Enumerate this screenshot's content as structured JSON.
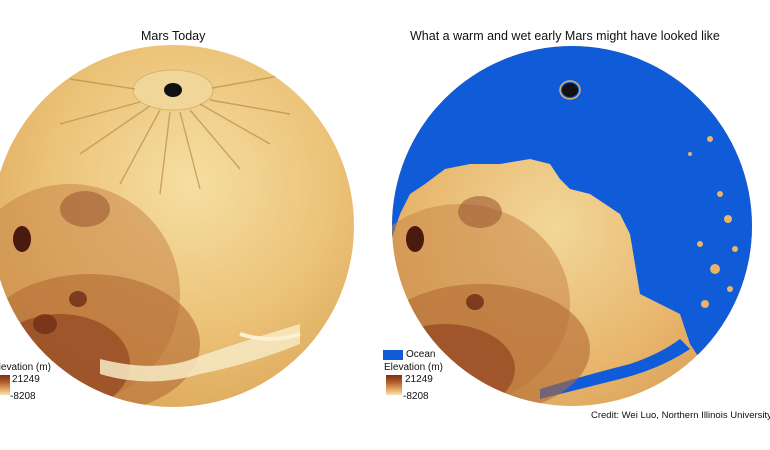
{
  "panels": {
    "left": {
      "title": "Mars Today"
    },
    "right": {
      "title": "What a warm and wet early Mars might have looked like"
    }
  },
  "legend": {
    "left": {
      "label": "Elevation (m)",
      "max": "21249",
      "min": "-8208"
    },
    "right": {
      "ocean_label": "Ocean",
      "label": "Elevation (m)",
      "max": "21249",
      "min": "-8208"
    }
  },
  "credit": "Credit: Wei Luo, Northern Illinois University",
  "colors": {
    "terrain_light": "#f3d99a",
    "terrain_mid": "#e8b763",
    "terrain_dark": "#8a3a1c",
    "ocean": "#0f5bd8"
  }
}
